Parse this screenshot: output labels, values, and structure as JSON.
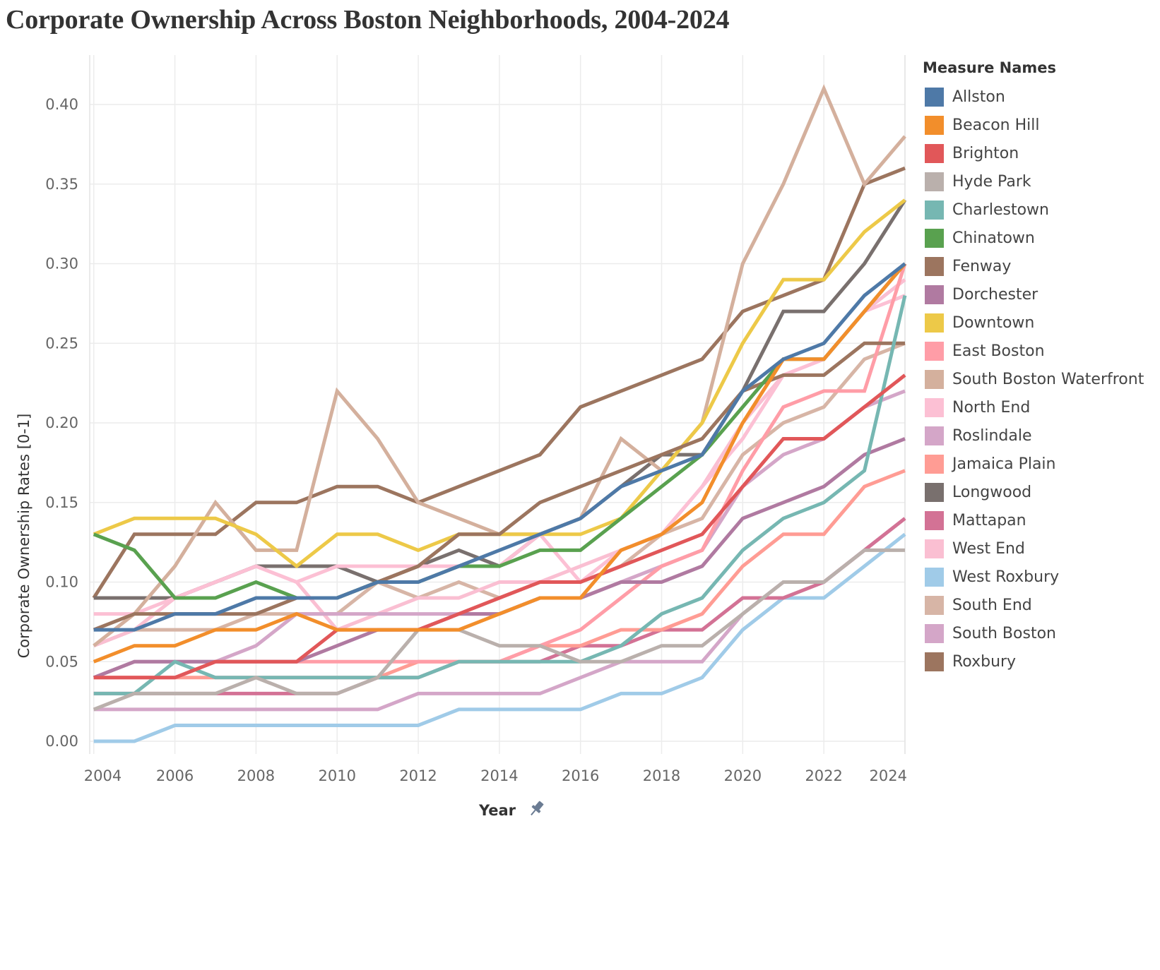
{
  "title": "Corporate Ownership Across Boston Neighborhoods, 2004-2024",
  "legend": {
    "title": "Measure Names"
  },
  "chart_data": {
    "type": "line",
    "title": "Corporate Ownership Across Boston Neighborhoods, 2004-2024",
    "xlabel": "Year",
    "ylabel": "Corporate Ownership Rates [0-1]",
    "x": [
      2004,
      2005,
      2006,
      2007,
      2008,
      2009,
      2010,
      2011,
      2012,
      2013,
      2014,
      2015,
      2016,
      2017,
      2018,
      2019,
      2020,
      2021,
      2022,
      2023,
      2024
    ],
    "xlim": [
      2004,
      2024
    ],
    "ylim": [
      -0.01,
      0.42
    ],
    "x_ticks": [
      2004,
      2006,
      2008,
      2010,
      2012,
      2014,
      2016,
      2018,
      2020,
      2022,
      2024
    ],
    "y_ticks": [
      0.0,
      0.05,
      0.1,
      0.15,
      0.2,
      0.25,
      0.3,
      0.35,
      0.4
    ],
    "y_tick_labels": [
      "0.00",
      "0.05",
      "0.10",
      "0.15",
      "0.20",
      "0.25",
      "0.30",
      "0.35",
      "0.40"
    ],
    "grid": true,
    "legend_position": "right",
    "series": [
      {
        "name": "Allston",
        "color": "#4e79a7",
        "values": [
          0.07,
          0.07,
          0.08,
          0.08,
          0.09,
          0.09,
          0.09,
          0.1,
          0.1,
          0.11,
          0.12,
          0.13,
          0.14,
          0.16,
          0.17,
          0.18,
          0.22,
          0.24,
          0.25,
          0.28,
          0.3
        ]
      },
      {
        "name": "Beacon Hill",
        "color": "#f28e2b",
        "values": [
          0.05,
          0.06,
          0.06,
          0.07,
          0.07,
          0.08,
          0.07,
          0.07,
          0.07,
          0.07,
          0.08,
          0.09,
          0.09,
          0.12,
          0.13,
          0.15,
          0.2,
          0.24,
          0.24,
          0.27,
          0.3
        ]
      },
      {
        "name": "Brighton",
        "color": "#e15759",
        "values": [
          0.04,
          0.04,
          0.04,
          0.05,
          0.05,
          0.05,
          0.07,
          0.07,
          0.07,
          0.08,
          0.09,
          0.1,
          0.1,
          0.11,
          0.12,
          0.13,
          0.16,
          0.19,
          0.19,
          0.21,
          0.23
        ]
      },
      {
        "name": "Hyde Park",
        "color": "#bab0ac",
        "values": [
          0.02,
          0.03,
          0.03,
          0.03,
          0.04,
          0.03,
          0.03,
          0.04,
          0.07,
          0.07,
          0.06,
          0.06,
          0.05,
          0.05,
          0.06,
          0.06,
          0.08,
          0.1,
          0.1,
          0.12,
          0.12
        ]
      },
      {
        "name": "Charlestown",
        "color": "#76b7b2",
        "values": [
          0.03,
          0.03,
          0.05,
          0.04,
          0.04,
          0.04,
          0.04,
          0.04,
          0.04,
          0.05,
          0.05,
          0.05,
          0.05,
          0.06,
          0.08,
          0.09,
          0.12,
          0.14,
          0.15,
          0.17,
          0.28
        ]
      },
      {
        "name": "Chinatown",
        "color": "#59a14f",
        "values": [
          0.13,
          0.12,
          0.09,
          0.09,
          0.1,
          0.09,
          0.09,
          0.1,
          0.1,
          0.11,
          0.11,
          0.12,
          0.12,
          0.14,
          0.16,
          0.18,
          0.21,
          0.24,
          0.24,
          0.27,
          0.3
        ]
      },
      {
        "name": "Fenway",
        "color": "#9c755f",
        "values": [
          0.07,
          0.08,
          0.08,
          0.08,
          0.08,
          0.09,
          0.09,
          0.1,
          0.11,
          0.13,
          0.13,
          0.15,
          0.16,
          0.17,
          0.18,
          0.19,
          0.22,
          0.23,
          0.23,
          0.25,
          0.25
        ]
      },
      {
        "name": "Dorchester",
        "color": "#b07aa1",
        "values": [
          0.04,
          0.05,
          0.05,
          0.05,
          0.05,
          0.05,
          0.06,
          0.07,
          0.07,
          0.08,
          0.08,
          0.09,
          0.09,
          0.1,
          0.1,
          0.11,
          0.14,
          0.15,
          0.16,
          0.18,
          0.19
        ]
      },
      {
        "name": "Downtown",
        "color": "#edc948",
        "values": [
          0.13,
          0.14,
          0.14,
          0.14,
          0.13,
          0.11,
          0.13,
          0.13,
          0.12,
          0.13,
          0.13,
          0.13,
          0.13,
          0.14,
          0.17,
          0.2,
          0.25,
          0.29,
          0.29,
          0.32,
          0.34
        ]
      },
      {
        "name": "East Boston",
        "color": "#ff9da7",
        "values": [
          0.04,
          0.04,
          0.04,
          0.05,
          0.05,
          0.05,
          0.05,
          0.05,
          0.05,
          0.05,
          0.05,
          0.06,
          0.07,
          0.09,
          0.11,
          0.12,
          0.17,
          0.21,
          0.22,
          0.22,
          0.3
        ]
      },
      {
        "name": "South Boston Waterfront",
        "color": "#d4b09d",
        "values": [
          0.06,
          0.08,
          0.11,
          0.15,
          0.12,
          0.12,
          0.22,
          0.19,
          0.15,
          0.14,
          0.13,
          0.13,
          0.14,
          0.19,
          0.17,
          0.2,
          0.3,
          0.35,
          0.41,
          0.35,
          0.38
        ]
      },
      {
        "name": "North End",
        "color": "#fcc0d4",
        "values": [
          0.08,
          0.08,
          0.09,
          0.1,
          0.11,
          0.1,
          0.11,
          0.11,
          0.11,
          0.11,
          0.11,
          0.13,
          0.1,
          0.12,
          0.13,
          0.16,
          0.19,
          0.23,
          0.24,
          0.27,
          0.28
        ]
      },
      {
        "name": "Roslindale",
        "color": "#d4a6c8",
        "values": [
          0.04,
          0.05,
          0.05,
          0.05,
          0.06,
          0.08,
          0.08,
          0.08,
          0.08,
          0.08,
          0.08,
          0.09,
          0.09,
          0.1,
          0.11,
          0.12,
          0.16,
          0.18,
          0.19,
          0.21,
          0.22
        ]
      },
      {
        "name": "Jamaica Plain",
        "color": "#ff9c94",
        "values": [
          0.04,
          0.04,
          0.04,
          0.04,
          0.04,
          0.04,
          0.04,
          0.04,
          0.05,
          0.05,
          0.05,
          0.06,
          0.06,
          0.07,
          0.07,
          0.08,
          0.11,
          0.13,
          0.13,
          0.16,
          0.17
        ]
      },
      {
        "name": "Longwood",
        "color": "#79706e",
        "values": [
          0.09,
          0.09,
          0.09,
          0.1,
          0.11,
          0.11,
          0.11,
          0.1,
          0.11,
          0.12,
          0.11,
          0.13,
          0.14,
          0.16,
          0.18,
          0.18,
          0.22,
          0.27,
          0.27,
          0.3,
          0.34
        ]
      },
      {
        "name": "Mattapan",
        "color": "#d37295",
        "values": [
          0.03,
          0.03,
          0.03,
          0.03,
          0.03,
          0.03,
          0.03,
          0.04,
          0.04,
          0.05,
          0.05,
          0.05,
          0.06,
          0.06,
          0.07,
          0.07,
          0.09,
          0.09,
          0.1,
          0.12,
          0.14
        ]
      },
      {
        "name": "West End",
        "color": "#fabfd2",
        "values": [
          0.06,
          0.07,
          0.09,
          0.1,
          0.11,
          0.1,
          0.07,
          0.08,
          0.09,
          0.09,
          0.1,
          0.1,
          0.11,
          0.12,
          0.13,
          0.16,
          0.2,
          0.23,
          0.24,
          0.27,
          0.29
        ]
      },
      {
        "name": "West Roxbury",
        "color": "#a0cbe8",
        "values": [
          0.0,
          0.0,
          0.01,
          0.01,
          0.01,
          0.01,
          0.01,
          0.01,
          0.01,
          0.02,
          0.02,
          0.02,
          0.02,
          0.03,
          0.03,
          0.04,
          0.07,
          0.09,
          0.09,
          0.11,
          0.13
        ]
      },
      {
        "name": "South End",
        "color": "#d7b5a6",
        "values": [
          0.06,
          0.07,
          0.07,
          0.07,
          0.08,
          0.08,
          0.08,
          0.1,
          0.09,
          0.1,
          0.09,
          0.1,
          0.1,
          0.11,
          0.13,
          0.14,
          0.18,
          0.2,
          0.21,
          0.24,
          0.25
        ]
      },
      {
        "name": "South Boston",
        "color": "#d4a6c8",
        "values": [
          0.02,
          0.02,
          0.02,
          0.02,
          0.02,
          0.02,
          0.02,
          0.02,
          0.03,
          0.03,
          0.03,
          0.03,
          0.04,
          0.05,
          0.05,
          0.05,
          0.08,
          0.1,
          0.1,
          0.12,
          0.14
        ]
      },
      {
        "name": "Roxbury",
        "color": "#9c755f",
        "values": [
          0.09,
          0.13,
          0.13,
          0.13,
          0.15,
          0.15,
          0.16,
          0.16,
          0.15,
          0.16,
          0.17,
          0.18,
          0.21,
          0.22,
          0.23,
          0.24,
          0.27,
          0.28,
          0.29,
          0.35,
          0.36
        ]
      }
    ]
  }
}
